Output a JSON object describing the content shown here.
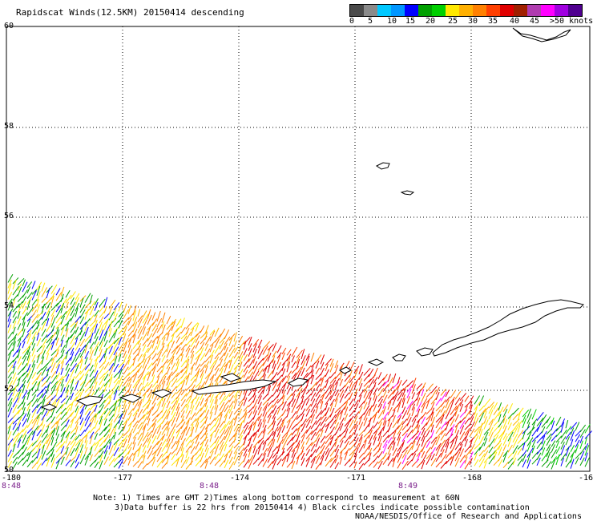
{
  "title": "Rapidscat Winds(12.5KM) 20150414 descending",
  "legend": {
    "labels": [
      "0",
      "5",
      "10",
      "15",
      "20",
      "25",
      "30",
      "35",
      "40",
      "45",
      ">50 knots"
    ],
    "colors": [
      "#4a4a4a",
      "#8a8a8a",
      "#00c8ff",
      "#0096ff",
      "#0000ff",
      "#00a000",
      "#00d000",
      "#ffe800",
      "#ffb000",
      "#ff8000",
      "#ff4000",
      "#e00000",
      "#a02000",
      "#b03cb0",
      "#ff00ff",
      "#a000e0",
      "#500090"
    ]
  },
  "lat_labels": [
    "60",
    "58",
    "56",
    "54",
    "52",
    "50"
  ],
  "lon_labels": [
    "-180",
    "-177",
    "-174",
    "-171",
    "-168",
    "-16"
  ],
  "time_labels": [
    "8:48",
    "8:48",
    "8:49"
  ],
  "notes": {
    "line1": "Note: 1) Times are GMT 2)Times along bottom correspond to measurement at 60N",
    "line2": "3)Data buffer is 22 hrs from 20150414 4) Black circles indicate possible contamination",
    "line3": "NOAA/NESDIS/Office of Research and Applications"
  }
}
